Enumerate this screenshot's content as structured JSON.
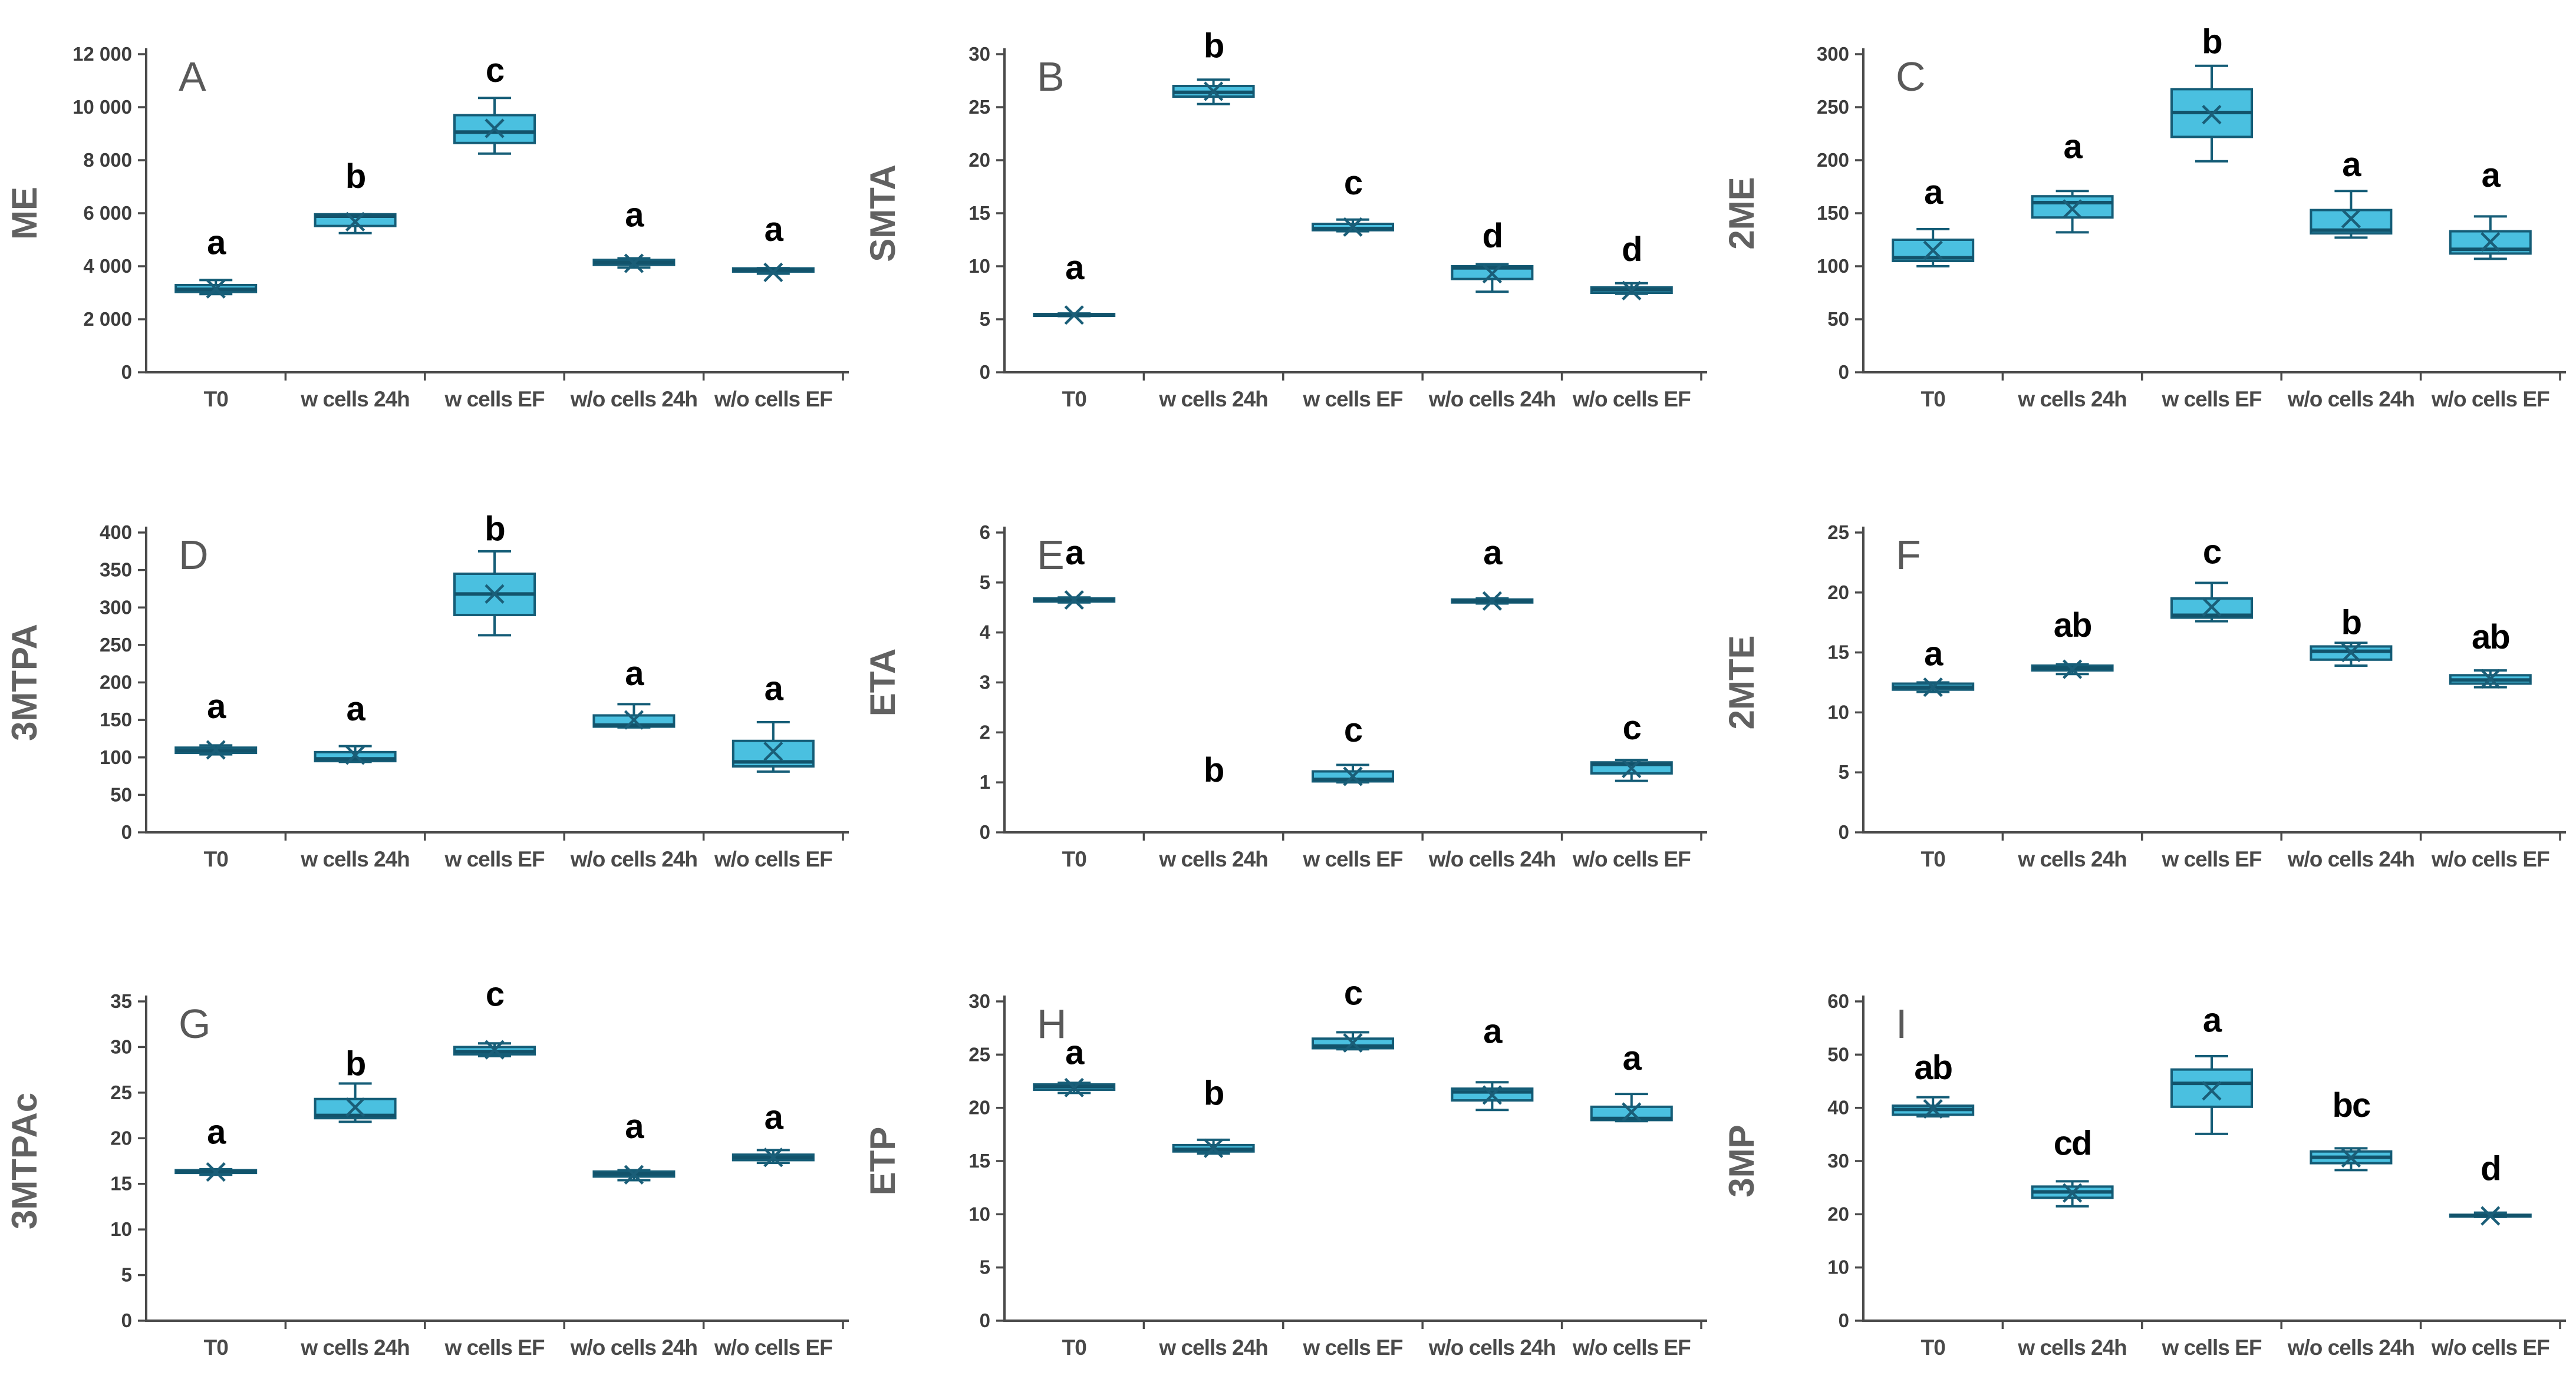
{
  "figure_title": "",
  "styles": {
    "background": "#ffffff",
    "box_fill": "#4ac0e0",
    "box_stroke": "#155d77",
    "whisker_color": "#155d77",
    "median_color": "#12536b",
    "mean_marker_color": "#1a5e78",
    "axis_color": "#4a4a4a",
    "tick_label_color": "#3d3d3d",
    "category_label_color": "#4a4a4a",
    "panel_letter_color": "#595959",
    "axis_title_color": "#616161",
    "sig_letter_color": "#000000"
  },
  "categories": [
    "T0",
    "w cells 24h",
    "w cells EF",
    "w/o cells 24h",
    "w/o cells EF"
  ],
  "chart_data": [
    {
      "panel": "A",
      "type": "box",
      "ylabel": "ME",
      "ylim": [
        0,
        12000
      ],
      "yticks": [
        0,
        2000,
        4000,
        6000,
        8000,
        10000,
        12000
      ],
      "ytick_labels": [
        "0",
        "2 000",
        "4 000",
        "6 000",
        "8 000",
        "10 000",
        "12 000"
      ],
      "categories": [
        "T0",
        "w cells 24h",
        "w cells EF",
        "w/o cells 24h",
        "w/o cells EF"
      ],
      "boxes": [
        {
          "category": "T0",
          "letter": "a",
          "letter_y": 4900,
          "min": 2950,
          "q1": 3030,
          "median": 3130,
          "q3": 3290,
          "max": 3480,
          "mean": 3150
        },
        {
          "category": "w cells 24h",
          "letter": "b",
          "letter_y": 7400,
          "min": 5250,
          "q1": 5520,
          "median": 5890,
          "q3": 5960,
          "max": 5960,
          "mean": 5680
        },
        {
          "category": "w cells EF",
          "letter": "c",
          "letter_y": 11400,
          "min": 8250,
          "q1": 8650,
          "median": 9060,
          "q3": 9700,
          "max": 10350,
          "mean": 9200
        },
        {
          "category": "w/o cells 24h",
          "letter": "a",
          "letter_y": 5950,
          "min": 3950,
          "q1": 4050,
          "median": 4140,
          "q3": 4240,
          "max": 4300,
          "mean": 4110
        },
        {
          "category": "w/o cells EF",
          "letter": "a",
          "letter_y": 5400,
          "min": 3720,
          "q1": 3800,
          "median": 3860,
          "q3": 3920,
          "max": 3930,
          "mean": 3770
        }
      ]
    },
    {
      "panel": "B",
      "type": "box",
      "ylabel": "SMTA",
      "ylim": [
        0,
        30
      ],
      "yticks": [
        0,
        5,
        10,
        15,
        20,
        25,
        30
      ],
      "ytick_labels": [
        "0",
        "5",
        "10",
        "15",
        "20",
        "25",
        "30"
      ],
      "categories": [
        "T0",
        "w cells 24h",
        "w cells EF",
        "w/o cells 24h",
        "w/o cells EF"
      ],
      "boxes": [
        {
          "category": "T0",
          "letter": "a",
          "letter_y": 9.9,
          "min": 5.3,
          "q1": 5.35,
          "median": 5.4,
          "q3": 5.5,
          "max": 5.55,
          "mean": 5.4
        },
        {
          "category": "w cells 24h",
          "letter": "b",
          "letter_y": 30.8,
          "min": 25.3,
          "q1": 26.0,
          "median": 26.4,
          "q3": 27.0,
          "max": 27.6,
          "mean": 26.5
        },
        {
          "category": "w cells EF",
          "letter": "c",
          "letter_y": 17.9,
          "min": 13.3,
          "q1": 13.4,
          "median": 13.55,
          "q3": 14.0,
          "max": 14.4,
          "mean": 13.7
        },
        {
          "category": "w/o cells 24h",
          "letter": "d",
          "letter_y": 12.9,
          "min": 7.6,
          "q1": 8.8,
          "median": 9.85,
          "q3": 10.0,
          "max": 10.2,
          "mean": 9.3
        },
        {
          "category": "w/o cells EF",
          "letter": "d",
          "letter_y": 11.6,
          "min": 7.4,
          "q1": 7.5,
          "median": 7.8,
          "q3": 8.0,
          "max": 8.4,
          "mean": 7.7
        }
      ]
    },
    {
      "panel": "C",
      "type": "box",
      "ylabel": "2ME",
      "ylim": [
        0,
        300
      ],
      "yticks": [
        0,
        50,
        100,
        150,
        200,
        250,
        300
      ],
      "ytick_labels": [
        "0",
        "50",
        "100",
        "150",
        "200",
        "250",
        "300"
      ],
      "categories": [
        "T0",
        "w cells 24h",
        "w cells EF",
        "w/o cells 24h",
        "w/o cells EF"
      ],
      "boxes": [
        {
          "category": "T0",
          "letter": "a",
          "letter_y": 170,
          "min": 100,
          "q1": 105,
          "median": 108,
          "q3": 125,
          "max": 135,
          "mean": 115
        },
        {
          "category": "w cells 24h",
          "letter": "a",
          "letter_y": 213,
          "min": 132,
          "q1": 146,
          "median": 160,
          "q3": 166,
          "max": 171,
          "mean": 154
        },
        {
          "category": "w cells EF",
          "letter": "b",
          "letter_y": 312,
          "min": 199,
          "q1": 222,
          "median": 245,
          "q3": 267,
          "max": 289,
          "mean": 243
        },
        {
          "category": "w/o cells 24h",
          "letter": "a",
          "letter_y": 196,
          "min": 127,
          "q1": 131,
          "median": 134,
          "q3": 153,
          "max": 171,
          "mean": 145
        },
        {
          "category": "w/o cells EF",
          "letter": "a",
          "letter_y": 186,
          "min": 107,
          "q1": 112,
          "median": 116,
          "q3": 133,
          "max": 147,
          "mean": 123
        }
      ]
    },
    {
      "panel": "D",
      "type": "box",
      "ylabel": "3MTPA",
      "ylim": [
        0,
        400
      ],
      "yticks": [
        0,
        50,
        100,
        150,
        200,
        250,
        300,
        350,
        400
      ],
      "ytick_labels": [
        "0",
        "50",
        "100",
        "150",
        "200",
        "250",
        "300",
        "350",
        "400"
      ],
      "categories": [
        "T0",
        "w cells 24h",
        "w cells EF",
        "w/o cells 24h",
        "w/o cells EF"
      ],
      "boxes": [
        {
          "category": "T0",
          "letter": "a",
          "letter_y": 168,
          "min": 104,
          "q1": 106,
          "median": 109,
          "q3": 113,
          "max": 116,
          "mean": 110
        },
        {
          "category": "w cells 24h",
          "letter": "a",
          "letter_y": 165,
          "min": 94,
          "q1": 95,
          "median": 98,
          "q3": 107,
          "max": 115,
          "mean": 103
        },
        {
          "category": "w cells EF",
          "letter": "b",
          "letter_y": 405,
          "min": 263,
          "q1": 290,
          "median": 318,
          "q3": 345,
          "max": 375,
          "mean": 318
        },
        {
          "category": "w/o cells 24h",
          "letter": "a",
          "letter_y": 212,
          "min": 140,
          "q1": 141,
          "median": 143,
          "q3": 156,
          "max": 171,
          "mean": 150
        },
        {
          "category": "w/o cells EF",
          "letter": "a",
          "letter_y": 192,
          "min": 81,
          "q1": 88,
          "median": 94,
          "q3": 122,
          "max": 147,
          "mean": 108
        }
      ]
    },
    {
      "panel": "E",
      "type": "box",
      "ylabel": "ETA",
      "ylim": [
        0,
        6
      ],
      "yticks": [
        0,
        1,
        2,
        3,
        4,
        5,
        6
      ],
      "ytick_labels": [
        "0",
        "1",
        "2",
        "3",
        "4",
        "5",
        "6"
      ],
      "categories": [
        "T0",
        "w cells 24h",
        "w cells EF",
        "w/o cells 24h",
        "w/o cells EF"
      ],
      "boxes": [
        {
          "category": "T0",
          "letter": "a",
          "letter_y": 5.6,
          "min": 4.6,
          "q1": 4.62,
          "median": 4.65,
          "q3": 4.68,
          "max": 4.7,
          "mean": 4.65
        },
        {
          "category": "w cells 24h",
          "letter": "b",
          "letter_y": 1.25,
          "min": null,
          "q1": null,
          "median": null,
          "q3": null,
          "max": null,
          "mean": null
        },
        {
          "category": "w cells EF",
          "letter": "c",
          "letter_y": 2.05,
          "min": 1.0,
          "q1": 1.02,
          "median": 1.06,
          "q3": 1.22,
          "max": 1.35,
          "mean": 1.12
        },
        {
          "category": "w/o cells 24h",
          "letter": "a",
          "letter_y": 5.6,
          "min": 4.58,
          "q1": 4.6,
          "median": 4.63,
          "q3": 4.66,
          "max": 4.68,
          "mean": 4.63
        },
        {
          "category": "w/o cells EF",
          "letter": "c",
          "letter_y": 2.1,
          "min": 1.03,
          "q1": 1.18,
          "median": 1.36,
          "q3": 1.4,
          "max": 1.45,
          "mean": 1.28
        }
      ]
    },
    {
      "panel": "F",
      "type": "box",
      "ylabel": "2MTE",
      "ylim": [
        0,
        25
      ],
      "yticks": [
        0,
        5,
        10,
        15,
        20,
        25
      ],
      "ytick_labels": [
        "0",
        "5",
        "10",
        "15",
        "20",
        "25"
      ],
      "categories": [
        "T0",
        "w cells 24h",
        "w cells EF",
        "w/o cells 24h",
        "w/o cells EF"
      ],
      "boxes": [
        {
          "category": "T0",
          "letter": "a",
          "letter_y": 14.9,
          "min": 11.7,
          "q1": 11.9,
          "median": 12.1,
          "q3": 12.4,
          "max": 12.5,
          "mean": 12.1
        },
        {
          "category": "w cells 24h",
          "letter": "ab",
          "letter_y": 17.3,
          "min": 13.2,
          "q1": 13.5,
          "median": 13.7,
          "q3": 13.9,
          "max": 14.0,
          "mean": 13.6
        },
        {
          "category": "w cells EF",
          "letter": "c",
          "letter_y": 23.4,
          "min": 17.6,
          "q1": 17.9,
          "median": 18.1,
          "q3": 19.5,
          "max": 20.8,
          "mean": 18.8
        },
        {
          "category": "w/o cells 24h",
          "letter": "b",
          "letter_y": 17.5,
          "min": 13.9,
          "q1": 14.4,
          "median": 15.1,
          "q3": 15.5,
          "max": 15.8,
          "mean": 15.0
        },
        {
          "category": "w/o cells EF",
          "letter": "ab",
          "letter_y": 16.3,
          "min": 12.1,
          "q1": 12.4,
          "median": 12.7,
          "q3": 13.1,
          "max": 13.5,
          "mean": 12.8
        }
      ]
    },
    {
      "panel": "G",
      "type": "box",
      "ylabel": "3MTPAc",
      "ylim": [
        0,
        35
      ],
      "yticks": [
        0,
        5,
        10,
        15,
        20,
        25,
        30,
        35
      ],
      "ytick_labels": [
        "0",
        "5",
        "10",
        "15",
        "20",
        "25",
        "30",
        "35"
      ],
      "categories": [
        "T0",
        "w cells 24h",
        "w cells EF",
        "w/o cells 24h",
        "w/o cells EF"
      ],
      "boxes": [
        {
          "category": "T0",
          "letter": "a",
          "letter_y": 20.7,
          "min": 16.0,
          "q1": 16.2,
          "median": 16.35,
          "q3": 16.5,
          "max": 16.6,
          "mean": 16.3
        },
        {
          "category": "w cells 24h",
          "letter": "b",
          "letter_y": 28.2,
          "min": 21.8,
          "q1": 22.2,
          "median": 22.5,
          "q3": 24.3,
          "max": 26.0,
          "mean": 23.4
        },
        {
          "category": "w cells EF",
          "letter": "c",
          "letter_y": 35.8,
          "min": 29.0,
          "q1": 29.2,
          "median": 29.5,
          "q3": 30.0,
          "max": 30.4,
          "mean": 29.7
        },
        {
          "category": "w/o cells 24h",
          "letter": "a",
          "letter_y": 21.3,
          "min": 15.4,
          "q1": 15.8,
          "median": 16.1,
          "q3": 16.35,
          "max": 16.5,
          "mean": 16.0
        },
        {
          "category": "w/o cells EF",
          "letter": "a",
          "letter_y": 22.3,
          "min": 17.3,
          "q1": 17.6,
          "median": 17.9,
          "q3": 18.2,
          "max": 18.7,
          "mean": 17.9
        }
      ]
    },
    {
      "panel": "H",
      "type": "box",
      "ylabel": "ETP",
      "ylim": [
        0,
        30
      ],
      "yticks": [
        0,
        5,
        10,
        15,
        20,
        25,
        30
      ],
      "ytick_labels": [
        "0",
        "5",
        "10",
        "15",
        "20",
        "25",
        "30"
      ],
      "categories": [
        "T0",
        "w cells 24h",
        "w cells EF",
        "w/o cells 24h",
        "w/o cells EF"
      ],
      "boxes": [
        {
          "category": "T0",
          "letter": "a",
          "letter_y": 25.2,
          "min": 21.4,
          "q1": 21.7,
          "median": 22.0,
          "q3": 22.2,
          "max": 22.35,
          "mean": 21.9
        },
        {
          "category": "w cells 24h",
          "letter": "b",
          "letter_y": 21.4,
          "min": 15.7,
          "q1": 15.9,
          "median": 16.1,
          "q3": 16.5,
          "max": 17.0,
          "mean": 16.2
        },
        {
          "category": "w cells EF",
          "letter": "c",
          "letter_y": 30.8,
          "min": 25.5,
          "q1": 25.6,
          "median": 25.8,
          "q3": 26.5,
          "max": 27.1,
          "mean": 26.1
        },
        {
          "category": "w/o cells 24h",
          "letter": "a",
          "letter_y": 27.2,
          "min": 19.8,
          "q1": 20.7,
          "median": 21.5,
          "q3": 21.8,
          "max": 22.4,
          "mean": 21.2
        },
        {
          "category": "w/o cells EF",
          "letter": "a",
          "letter_y": 24.7,
          "min": 18.75,
          "q1": 18.85,
          "median": 19.0,
          "q3": 20.1,
          "max": 21.3,
          "mean": 19.6
        }
      ]
    },
    {
      "panel": "I",
      "type": "box",
      "ylabel": "3MP",
      "ylim": [
        0,
        60
      ],
      "yticks": [
        0,
        10,
        20,
        30,
        40,
        50,
        60
      ],
      "ytick_labels": [
        "0",
        "10",
        "20",
        "30",
        "40",
        "50",
        "60"
      ],
      "categories": [
        "T0",
        "w cells 24h",
        "w cells EF",
        "w/o cells 24h",
        "w/o cells EF"
      ],
      "boxes": [
        {
          "category": "T0",
          "letter": "ab",
          "letter_y": 47.6,
          "min": 38.4,
          "q1": 38.7,
          "median": 39.7,
          "q3": 40.4,
          "max": 42.0,
          "mean": 39.8
        },
        {
          "category": "w cells 24h",
          "letter": "cd",
          "letter_y": 33.4,
          "min": 21.5,
          "q1": 23.1,
          "median": 24.2,
          "q3": 25.2,
          "max": 26.2,
          "mean": 24.0
        },
        {
          "category": "w cells EF",
          "letter": "a",
          "letter_y": 56.5,
          "min": 35.1,
          "q1": 40.2,
          "median": 44.6,
          "q3": 47.2,
          "max": 49.7,
          "mean": 43.2
        },
        {
          "category": "w/o cells 24h",
          "letter": "bc",
          "letter_y": 40.5,
          "min": 28.3,
          "q1": 29.6,
          "median": 30.7,
          "q3": 31.8,
          "max": 32.4,
          "mean": 30.6
        },
        {
          "category": "w/o cells EF",
          "letter": "d",
          "letter_y": 28.6,
          "min": 19.5,
          "q1": 19.6,
          "median": 19.75,
          "q3": 19.9,
          "max": 20.3,
          "mean": 19.7
        }
      ]
    }
  ]
}
